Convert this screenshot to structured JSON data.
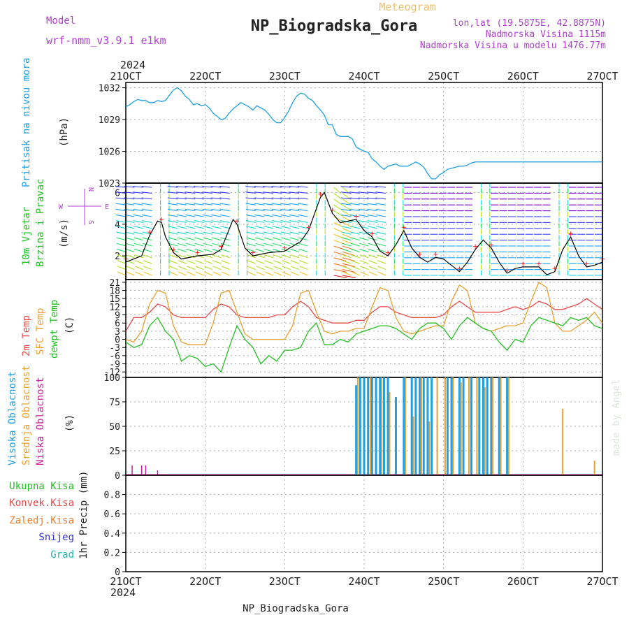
{
  "header": {
    "meteogram": "Meteogram",
    "model_label": "Model",
    "model_name": "wrf-nmm_v3.9.1  e1km",
    "station": "NP_Biogradska_Gora",
    "lonlat": "lon,lat (19.5875E, 42.8875N)",
    "altitude": "Nadmorska Visina 1115m",
    "model_altitude": "Nadmorska Visina u modelu 1476.77m",
    "footer_station": "NP_Biogradska_Gora",
    "watermark": "made by Angel",
    "year": "2024"
  },
  "colors": {
    "pressure": "#1ea0e6",
    "temp2m": "#e84a4a",
    "sfc": "#e8a030",
    "dew": "#22c022",
    "wind_speed": "#000000",
    "gust": "#ff2020",
    "high_cloud": "#1ea0e6",
    "mid_cloud": "#e8a030",
    "low_cloud": "#cc20a0",
    "precip_total": "#22c022",
    "precip_conv": "#e84a4a",
    "precip_frozen": "#f08030",
    "snow": "#3030e0",
    "hail": "#20b8b8",
    "compass": "#b040d0"
  },
  "time_axis": {
    "tick_labels": [
      "21OCT",
      "22OCT",
      "23OCT",
      "24OCT",
      "25OCT",
      "26OCT",
      "27OCT"
    ]
  },
  "panels": {
    "pressure": {
      "label": "Pritisak na nivou mora",
      "unit": "(hPa)"
    },
    "wind": {
      "label1": "10m Vjetar",
      "label2": "Brzina i Pravac",
      "unit": "(m/s)",
      "compass_n": "N",
      "compass_s": "S",
      "compass_w": "W",
      "compass_e": "E"
    },
    "temp": {
      "label1": "2m Temp",
      "label2": "SFC Temp",
      "label3": "dewpt Temp",
      "unit": "(C)"
    },
    "cloud": {
      "label1": "Visoka Oblacnost",
      "label2": "Srednja Oblacnost",
      "label3": "Niska Oblacnost",
      "unit": "(%)"
    },
    "precip": {
      "label1": "Ukupna Kisa",
      "label2": "Konvek.Kisa",
      "label3": "Zaledj.Kisa",
      "label4": "Snijeg",
      "label5": "Grad",
      "unit": "1hr Precip (mm)"
    }
  },
  "chart_data": [
    {
      "type": "line",
      "name": "pressure",
      "x": [
        0,
        0.05,
        0.1,
        0.15,
        0.2,
        0.25,
        0.3,
        0.35,
        0.4,
        0.45,
        0.5,
        0.55,
        0.6,
        0.65,
        0.7,
        0.75,
        0.8,
        0.85,
        0.9,
        0.95,
        1.0,
        1.05,
        1.1,
        1.15,
        1.2,
        1.25,
        1.3,
        1.35,
        1.4,
        1.45,
        1.5,
        1.55,
        1.6,
        1.65,
        1.7,
        1.75,
        1.8,
        1.85,
        1.9,
        1.95,
        2.0,
        2.05,
        2.1,
        2.15,
        2.2,
        2.25,
        2.3,
        2.35,
        2.4,
        2.45,
        2.5,
        2.55,
        2.6,
        2.65,
        2.7,
        2.75,
        2.8,
        2.85,
        2.9,
        2.95,
        3.0,
        3.05,
        3.1,
        3.15,
        3.2,
        3.25,
        3.3,
        3.35,
        3.4,
        3.45,
        3.5,
        3.55,
        3.6,
        3.65,
        3.7,
        3.75,
        3.8,
        3.85,
        3.9,
        3.95,
        4.0,
        4.05,
        4.1,
        4.15,
        4.2,
        4.25,
        4.3,
        4.35,
        4.4,
        4.45,
        4.5,
        4.55,
        4.6,
        4.65,
        4.7,
        4.75,
        4.8,
        4.85,
        4.9,
        4.95,
        5.0,
        5.05,
        5.1,
        5.15,
        5.2,
        5.25,
        5.3,
        5.35,
        5.4,
        5.45,
        5.5,
        5.55,
        5.6,
        5.65,
        5.7,
        5.75,
        5.8,
        5.85,
        5.9,
        5.95,
        6.0
      ],
      "y": [
        1030.2,
        1030.4,
        1030.7,
        1030.9,
        1030.8,
        1030.8,
        1030.6,
        1030.6,
        1030.8,
        1030.7,
        1030.8,
        1031.3,
        1031.8,
        1032.0,
        1031.7,
        1031.2,
        1030.9,
        1030.4,
        1030.5,
        1030.3,
        1030.4,
        1030.1,
        1029.6,
        1029.3,
        1029.0,
        1029.1,
        1029.6,
        1030.0,
        1030.3,
        1030.6,
        1030.4,
        1030.2,
        1029.9,
        1030.3,
        1030.1,
        1029.9,
        1029.5,
        1029.0,
        1028.7,
        1028.7,
        1029.2,
        1029.8,
        1030.6,
        1031.2,
        1031.5,
        1031.4,
        1031.0,
        1030.8,
        1030.3,
        1029.9,
        1029.4,
        1028.5,
        1028.5,
        1027.6,
        1027.4,
        1027.4,
        1027.4,
        1027.2,
        1026.4,
        1026.2,
        1026.0,
        1025.9,
        1025.3,
        1025.0,
        1024.6,
        1024.3,
        1024.6,
        1024.7,
        1024.8,
        1024.6,
        1024.6,
        1024.6,
        1024.8,
        1025.0,
        1024.8,
        1024.5,
        1023.9,
        1023.4,
        1023.4,
        1023.8,
        1024.0,
        1024.3,
        1024.4,
        1024.5,
        1024.6,
        1024.6,
        1024.7,
        1024.9,
        1025.0,
        1025.0,
        1025.0,
        1025.0,
        1025.0,
        1025.0,
        1025.0,
        1025.0,
        1025.0,
        1025.0,
        1025.0,
        1025.0,
        1025.0,
        1025.0,
        1025.0,
        1025.0,
        1025.0,
        1025.0,
        1025.0,
        1025.0,
        1025.0,
        1025.0,
        1025.0,
        1025.0,
        1025.0,
        1025.0,
        1025.0,
        1025.0,
        1025.0,
        1025.0,
        1025.0,
        1025.0,
        1025.0
      ],
      "ylim": [
        1023,
        1032.5
      ],
      "yticks": [
        1023,
        1026,
        1029,
        1032
      ],
      "grid": true
    },
    {
      "type": "line",
      "name": "wind",
      "x_hours": "0-144",
      "ylim": [
        0.5,
        6.6
      ],
      "yticks": [
        2,
        4,
        6
      ],
      "grid": true,
      "series": [
        {
          "values_desc": "wind speed line",
          "x": [
            0,
            0.2,
            0.3,
            0.4,
            0.45,
            0.5,
            0.6,
            0.7,
            0.9,
            1.1,
            1.2,
            1.35,
            1.4,
            1.5,
            1.6,
            1.8,
            2.0,
            2.2,
            2.3,
            2.4,
            2.45,
            2.5,
            2.6,
            2.7,
            2.9,
            3.0,
            3.1,
            3.2,
            3.3,
            3.4,
            3.5,
            3.6,
            3.7,
            3.8,
            3.9,
            4.0,
            4.2,
            4.3,
            4.4,
            4.5,
            4.6,
            4.7,
            4.8,
            4.9,
            5.0,
            5.1,
            5.2,
            5.3,
            5.4,
            5.5,
            5.6,
            5.7,
            5.8,
            5.9,
            6.0
          ],
          "y": [
            1.6,
            2.0,
            3.3,
            4.2,
            4.1,
            3.2,
            2.2,
            1.8,
            2.0,
            2.1,
            2.4,
            4.3,
            4.0,
            2.5,
            2.0,
            2.2,
            2.3,
            2.9,
            3.6,
            5.0,
            5.7,
            6.0,
            4.7,
            4.1,
            4.3,
            3.6,
            3.2,
            2.3,
            2.0,
            2.7,
            3.6,
            2.5,
            1.9,
            1.6,
            1.9,
            1.8,
            1.0,
            1.6,
            2.4,
            3.0,
            2.5,
            1.6,
            0.9,
            1.2,
            1.3,
            1.3,
            1.3,
            0.8,
            1.0,
            2.4,
            3.2,
            2.0,
            1.3,
            1.4,
            1.6
          ]
        }
      ]
    },
    {
      "type": "line",
      "name": "temperature",
      "ylim": [
        -14,
        22
      ],
      "yticks": [
        -12,
        -9,
        -6,
        -3,
        0,
        3,
        6,
        9,
        12,
        15,
        18,
        21
      ],
      "grid": true,
      "x": [
        0,
        0.1,
        0.2,
        0.3,
        0.4,
        0.5,
        0.6,
        0.7,
        0.8,
        0.9,
        1.0,
        1.1,
        1.2,
        1.3,
        1.4,
        1.5,
        1.6,
        1.7,
        1.8,
        1.9,
        2.0,
        2.1,
        2.2,
        2.3,
        2.4,
        2.5,
        2.6,
        2.7,
        2.8,
        2.9,
        3.0,
        3.1,
        3.2,
        3.3,
        3.4,
        3.5,
        3.6,
        3.7,
        3.8,
        3.9,
        4.0,
        4.1,
        4.2,
        4.3,
        4.4,
        4.5,
        4.6,
        4.7,
        4.8,
        4.9,
        5.0,
        5.1,
        5.2,
        5.3,
        5.4,
        5.5,
        5.6,
        5.7,
        5.8,
        5.9,
        6.0
      ],
      "series": [
        {
          "name": "2m Temp",
          "values": [
            3,
            8,
            8,
            10,
            13,
            12,
            9,
            8,
            8,
            8,
            8,
            11,
            13,
            12,
            9,
            8,
            8,
            8,
            8,
            9,
            9,
            12,
            14,
            12,
            8,
            7,
            6,
            6,
            6,
            7,
            7,
            10,
            12,
            12,
            10,
            9,
            8,
            8,
            8,
            8,
            9,
            12,
            14,
            12,
            10,
            10,
            10,
            10,
            11,
            12,
            11,
            12,
            14,
            13,
            11,
            11,
            12,
            13,
            15,
            13,
            11
          ]
        },
        {
          "name": "SFC Temp",
          "values": [
            0,
            -1,
            3,
            13,
            18,
            17,
            5,
            -1,
            -2,
            -2,
            -2,
            6,
            17,
            18,
            10,
            2,
            0,
            0,
            0,
            0,
            0,
            5,
            17,
            18,
            10,
            3,
            2,
            3,
            3,
            4,
            4,
            12,
            19,
            18,
            8,
            3,
            2,
            3,
            4,
            5,
            5,
            14,
            20,
            18,
            6,
            4,
            3,
            4,
            5,
            5,
            6,
            14,
            21,
            19,
            6,
            3,
            3,
            5,
            7,
            10,
            6
          ]
        },
        {
          "name": "dewpt Temp",
          "values": [
            -1,
            -3,
            -2,
            5,
            8,
            3,
            0,
            -8,
            -6,
            -7,
            -10,
            -9,
            -12,
            -3,
            5,
            0,
            -3,
            -9,
            -6,
            -8,
            -4,
            -4,
            -3,
            3,
            6,
            -2,
            -2,
            0,
            -1,
            2,
            3,
            4,
            5,
            5,
            4,
            2,
            0,
            4,
            6,
            6,
            4,
            0,
            5,
            8,
            6,
            4,
            3,
            -1,
            -4,
            0,
            -1,
            5,
            8,
            7,
            6,
            5,
            8,
            7,
            8,
            5,
            4
          ]
        }
      ]
    },
    {
      "type": "bar",
      "name": "cloud",
      "ylim": [
        0,
        100
      ],
      "yticks": [
        0,
        25,
        50,
        75,
        100
      ],
      "grid": true,
      "series": [
        {
          "name": "Visoka Oblacnost",
          "x": [
            2.9,
            2.95,
            3.0,
            3.05,
            3.1,
            3.15,
            3.2,
            3.25,
            3.3,
            3.4,
            3.5,
            3.6,
            3.65,
            3.7,
            3.75,
            3.8,
            3.85,
            4.05,
            4.1,
            4.2,
            4.25,
            4.35,
            4.45,
            4.5,
            4.55,
            4.6,
            4.7,
            4.8
          ],
          "values": [
            92,
            100,
            100,
            100,
            100,
            100,
            100,
            100,
            100,
            80,
            100,
            100,
            100,
            100,
            100,
            100,
            100,
            100,
            100,
            100,
            100,
            100,
            100,
            100,
            100,
            100,
            100,
            100
          ]
        },
        {
          "name": "Srednja Oblacnost",
          "x": [
            2.92,
            3.08,
            3.22,
            3.32,
            3.52,
            3.62,
            3.72,
            3.82,
            3.92,
            4.02,
            4.12,
            4.22,
            4.32,
            4.42,
            4.52,
            4.62,
            4.72,
            4.82,
            5.5,
            5.9
          ],
          "values": [
            100,
            100,
            100,
            85,
            100,
            60,
            100,
            55,
            100,
            100,
            100,
            95,
            100,
            100,
            90,
            100,
            100,
            100,
            68,
            15
          ]
        },
        {
          "name": "Niska Oblacnost",
          "x": [
            0.08,
            0.2,
            0.25,
            0.4
          ],
          "values": [
            10,
            10,
            10,
            5
          ]
        }
      ]
    },
    {
      "type": "bar",
      "name": "precip",
      "ylim": [
        0,
        1.0
      ],
      "yticks": [
        0,
        0.2,
        0.4,
        0.6,
        0.8
      ],
      "grid": true,
      "series": [
        {
          "name": "Ukupna Kisa",
          "values": []
        }
      ]
    }
  ]
}
